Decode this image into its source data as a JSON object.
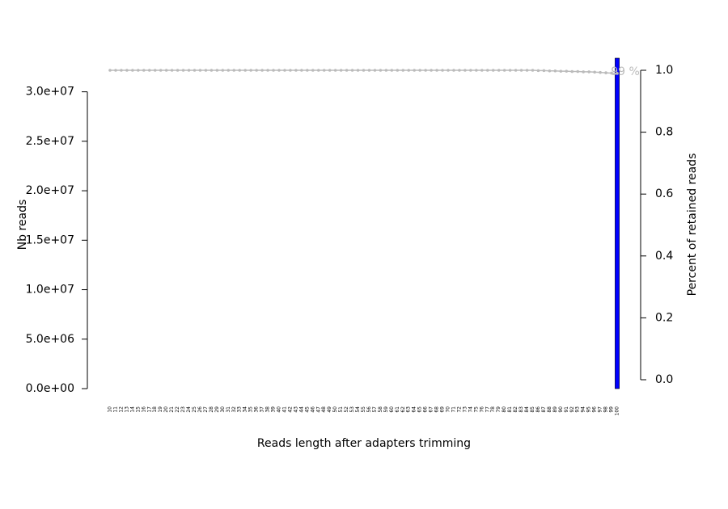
{
  "chart_data": {
    "type": "bar",
    "x_label": "Reads length after adapters trimming",
    "y_label": "Nb reads",
    "y2_label": "Percent of retained reads",
    "annotation": "99 %",
    "categories": [
      "10",
      "11",
      "12",
      "13",
      "14",
      "15",
      "16",
      "17",
      "18",
      "19",
      "20",
      "21",
      "22",
      "23",
      "24",
      "25",
      "26",
      "27",
      "28",
      "29",
      "30",
      "31",
      "32",
      "33",
      "34",
      "35",
      "36",
      "37",
      "38",
      "39",
      "40",
      "41",
      "42",
      "43",
      "44",
      "45",
      "46",
      "47",
      "48",
      "49",
      "50",
      "51",
      "52",
      "53",
      "54",
      "55",
      "56",
      "57",
      "58",
      "59",
      "60",
      "61",
      "62",
      "63",
      "64",
      "65",
      "66",
      "67",
      "68",
      "69",
      "70",
      "71",
      "72",
      "73",
      "74",
      "75",
      "76",
      "77",
      "78",
      "79",
      "80",
      "81",
      "82",
      "83",
      "84",
      "85",
      "86",
      "87",
      "88",
      "89",
      "90",
      "91",
      "92",
      "93",
      "94",
      "95",
      "96",
      "97",
      "98",
      "99",
      "100"
    ],
    "series": [
      {
        "type": "bar",
        "color": "#0000ff",
        "values": [
          0,
          0,
          0,
          0,
          0,
          0,
          0,
          0,
          0,
          0,
          0,
          0,
          0,
          0,
          0,
          0,
          0,
          0,
          0,
          0,
          0,
          0,
          0,
          0,
          0,
          0,
          0,
          0,
          0,
          0,
          0,
          0,
          0,
          0,
          0,
          0,
          0,
          0,
          0,
          0,
          0,
          0,
          0,
          0,
          0,
          0,
          0,
          0,
          0,
          0,
          0,
          0,
          0,
          0,
          0,
          0,
          0,
          0,
          0,
          0,
          0,
          0,
          0,
          0,
          0,
          0,
          0,
          0,
          0,
          0,
          0,
          0,
          0,
          0,
          0,
          0,
          0,
          0,
          0,
          0,
          0,
          0,
          0,
          0,
          0,
          0,
          0,
          0,
          0,
          0,
          33400000
        ]
      },
      {
        "type": "line",
        "axis": "y2",
        "color": "#bbbbbb",
        "values": [
          1.0,
          1.0,
          1.0,
          1.0,
          1.0,
          1.0,
          1.0,
          1.0,
          1.0,
          1.0,
          1.0,
          1.0,
          1.0,
          1.0,
          1.0,
          1.0,
          1.0,
          1.0,
          1.0,
          1.0,
          1.0,
          1.0,
          1.0,
          1.0,
          1.0,
          1.0,
          1.0,
          1.0,
          1.0,
          1.0,
          1.0,
          1.0,
          1.0,
          1.0,
          1.0,
          1.0,
          1.0,
          1.0,
          1.0,
          1.0,
          1.0,
          1.0,
          1.0,
          1.0,
          1.0,
          1.0,
          1.0,
          1.0,
          1.0,
          1.0,
          1.0,
          1.0,
          1.0,
          1.0,
          1.0,
          1.0,
          1.0,
          1.0,
          1.0,
          1.0,
          1.0,
          1.0,
          1.0,
          1.0,
          1.0,
          1.0,
          1.0,
          1.0,
          1.0,
          1.0,
          1.0,
          1.0,
          1.0,
          1.0,
          1.0,
          1.0,
          0.999,
          0.999,
          0.998,
          0.998,
          0.997,
          0.997,
          0.996,
          0.996,
          0.995,
          0.995,
          0.994,
          0.993,
          0.992,
          0.991,
          0.99
        ]
      }
    ],
    "ylim": [
      0,
      33400000
    ],
    "yticks": [
      {
        "value": 0,
        "label": "0.0e+00"
      },
      {
        "value": 5000000,
        "label": "5.0e+06"
      },
      {
        "value": 10000000,
        "label": "1.0e+07"
      },
      {
        "value": 15000000,
        "label": "1.5e+07"
      },
      {
        "value": 20000000,
        "label": "2.0e+07"
      },
      {
        "value": 25000000,
        "label": "2.5e+07"
      },
      {
        "value": 30000000,
        "label": "3.0e+07"
      }
    ],
    "y2lim": [
      0,
      1
    ],
    "y2ticks": [
      {
        "value": 0,
        "label": "0.0"
      },
      {
        "value": 0.2,
        "label": "0.2"
      },
      {
        "value": 0.4,
        "label": "0.4"
      },
      {
        "value": 0.6,
        "label": "0.6"
      },
      {
        "value": 0.8,
        "label": "0.8"
      },
      {
        "value": 1,
        "label": "1.0"
      }
    ]
  }
}
